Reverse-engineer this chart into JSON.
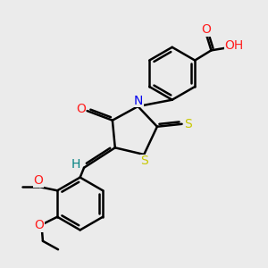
{
  "bg_color": "#ebebeb",
  "bond_color": "#000000",
  "bond_width": 1.8,
  "atom_colors": {
    "O": "#ff2020",
    "N": "#0000ee",
    "S": "#c8c800",
    "H": "#008080",
    "C": "#000000"
  },
  "font_size_atom": 10,
  "font_size_small": 8
}
